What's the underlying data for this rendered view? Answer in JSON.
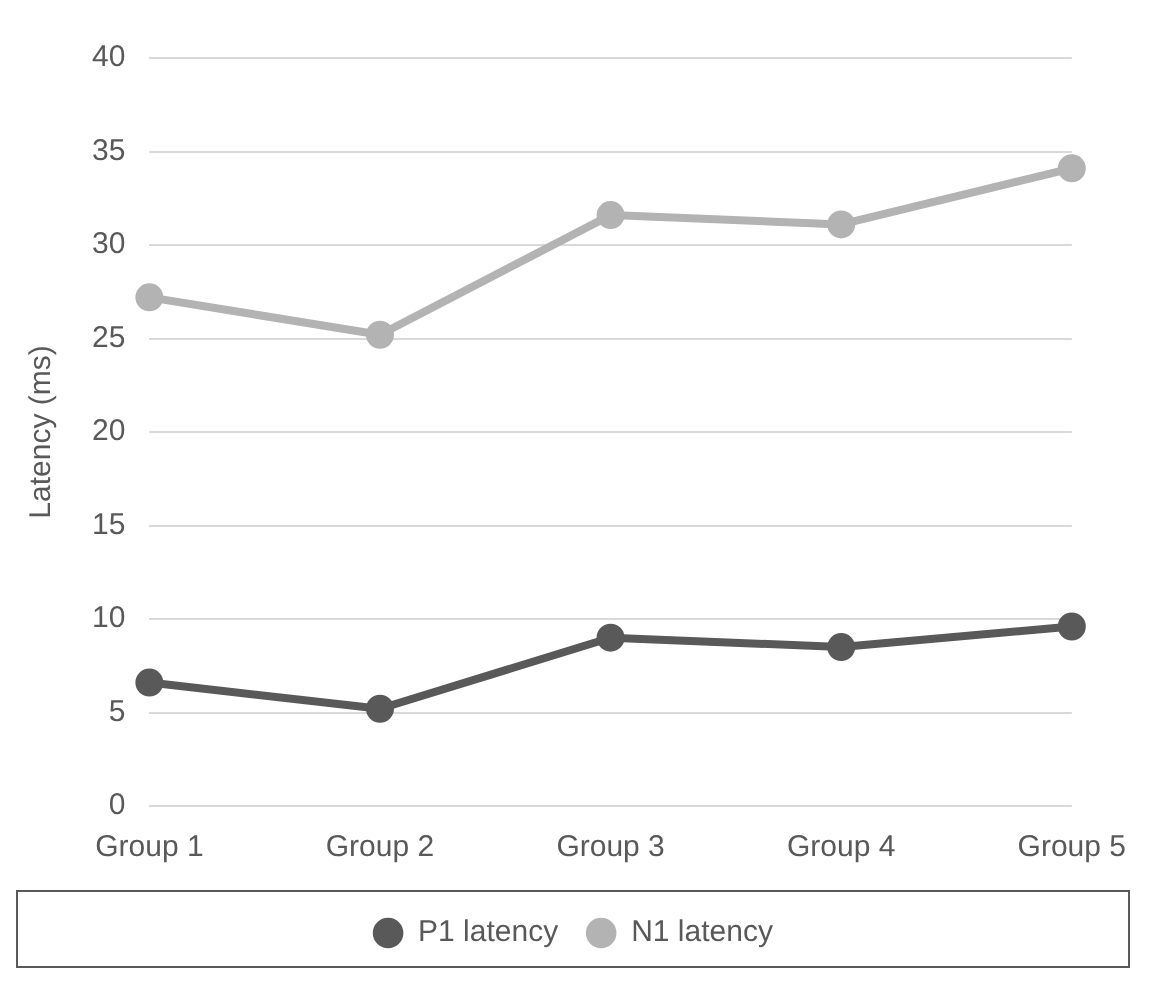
{
  "chart_data": {
    "type": "line",
    "ylabel": "Latency (ms)",
    "categories": [
      "Group 1",
      "Group 2",
      "Group 3",
      "Group 4",
      "Group 5"
    ],
    "series": [
      {
        "name": "P1 latency",
        "color": "#595959",
        "values": [
          6.6,
          5.2,
          9.0,
          8.5,
          9.6
        ]
      },
      {
        "name": "N1 latency",
        "color": "#b3b3b3",
        "values": [
          27.2,
          25.2,
          31.6,
          31.1,
          34.1
        ]
      }
    ],
    "ylim": [
      0,
      40
    ],
    "yticks": [
      0,
      5,
      10,
      15,
      20,
      25,
      30,
      35,
      40
    ],
    "grid": "y",
    "legend": "bottom",
    "marker": "circle",
    "line_style": "solid"
  }
}
